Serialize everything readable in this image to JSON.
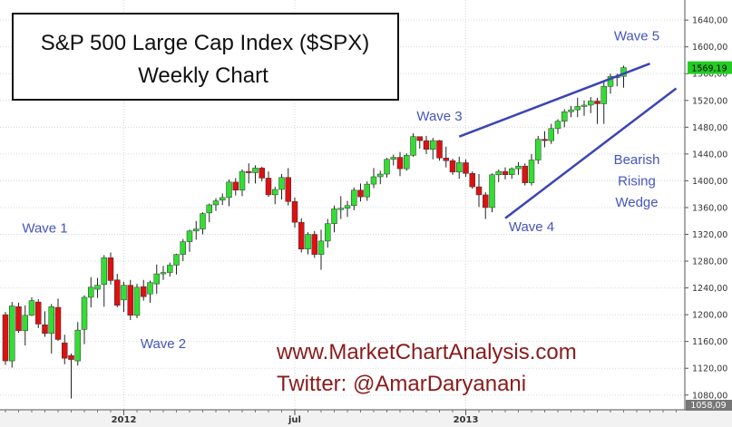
{
  "chart_data": {
    "type": "candlestick",
    "title": "S&P 500 Large Cap Index ($SPX)",
    "subtitle": "Weekly Chart",
    "last_price_label": "1569,19",
    "corner_label": "1058,09",
    "y_axis": {
      "range": [
        1058,
        1670
      ],
      "ticks": [
        {
          "value": 1080,
          "label": "1080,00"
        },
        {
          "value": 1120,
          "label": "1120,00"
        },
        {
          "value": 1160,
          "label": "1160,00"
        },
        {
          "value": 1200,
          "label": "1200,00"
        },
        {
          "value": 1240,
          "label": "1240,00"
        },
        {
          "value": 1280,
          "label": "1280,00"
        },
        {
          "value": 1320,
          "label": "1320,00"
        },
        {
          "value": 1360,
          "label": "1360,00"
        },
        {
          "value": 1400,
          "label": "1400,00"
        },
        {
          "value": 1440,
          "label": "1440,00"
        },
        {
          "value": 1480,
          "label": "1480,00"
        },
        {
          "value": 1520,
          "label": "1520,00"
        },
        {
          "value": 1560,
          "label": "1560,00"
        },
        {
          "value": 1600,
          "label": "1600,00"
        },
        {
          "value": 1640,
          "label": "1640,00"
        }
      ]
    },
    "x_axis": {
      "ticks": [
        {
          "index": 18,
          "label": "2012"
        },
        {
          "index": 44,
          "label": "jul"
        },
        {
          "index": 70,
          "label": "2013"
        }
      ]
    },
    "candles": [
      [
        1200,
        1204,
        1125,
        1131
      ],
      [
        1131,
        1219,
        1121,
        1213
      ],
      [
        1212,
        1218,
        1173,
        1176
      ],
      [
        1176,
        1214,
        1154,
        1199
      ],
      [
        1199,
        1226,
        1198,
        1221
      ],
      [
        1219,
        1223,
        1180,
        1186
      ],
      [
        1185,
        1205,
        1167,
        1172
      ],
      [
        1172,
        1216,
        1142,
        1212
      ],
      [
        1211,
        1224,
        1161,
        1163
      ],
      [
        1158,
        1170,
        1126,
        1135
      ],
      [
        1139,
        1142,
        1075,
        1133
      ],
      [
        1131,
        1189,
        1124,
        1177
      ],
      [
        1178,
        1229,
        1156,
        1226
      ],
      [
        1226,
        1256,
        1211,
        1241
      ],
      [
        1238,
        1255,
        1225,
        1244
      ],
      [
        1245,
        1289,
        1212,
        1285
      ],
      [
        1285,
        1293,
        1245,
        1251
      ],
      [
        1252,
        1261,
        1211,
        1214
      ],
      [
        1222,
        1249,
        1204,
        1244
      ],
      [
        1244,
        1252,
        1192,
        1199
      ],
      [
        1199,
        1246,
        1195,
        1241
      ],
      [
        1242,
        1252,
        1221,
        1227
      ],
      [
        1231,
        1251,
        1218,
        1248
      ],
      [
        1246,
        1275,
        1231,
        1261
      ],
      [
        1261,
        1273,
        1252,
        1263
      ],
      [
        1263,
        1278,
        1257,
        1274
      ],
      [
        1274,
        1291,
        1260,
        1290
      ],
      [
        1290,
        1313,
        1280,
        1309
      ],
      [
        1309,
        1327,
        1294,
        1325
      ],
      [
        1325,
        1340,
        1312,
        1328
      ],
      [
        1328,
        1353,
        1320,
        1351
      ],
      [
        1352,
        1366,
        1338,
        1364
      ],
      [
        1364,
        1374,
        1355,
        1370
      ],
      [
        1371,
        1381,
        1364,
        1375
      ],
      [
        1375,
        1402,
        1362,
        1398
      ],
      [
        1398,
        1404,
        1378,
        1386
      ],
      [
        1386,
        1417,
        1377,
        1414
      ],
      [
        1414,
        1426,
        1396,
        1412
      ],
      [
        1412,
        1423,
        1396,
        1419
      ],
      [
        1419,
        1421,
        1399,
        1404
      ],
      [
        1404,
        1414,
        1376,
        1379
      ],
      [
        1379,
        1391,
        1365,
        1387
      ],
      [
        1387,
        1410,
        1372,
        1405
      ],
      [
        1405,
        1419,
        1363,
        1369
      ],
      [
        1369,
        1375,
        1330,
        1338
      ],
      [
        1338,
        1344,
        1293,
        1298
      ],
      [
        1298,
        1323,
        1290,
        1320
      ],
      [
        1320,
        1325,
        1285,
        1290
      ],
      [
        1290,
        1327,
        1267,
        1310
      ],
      [
        1310,
        1343,
        1300,
        1336
      ],
      [
        1336,
        1363,
        1323,
        1358
      ],
      [
        1358,
        1377,
        1343,
        1359
      ],
      [
        1359,
        1370,
        1346,
        1363
      ],
      [
        1363,
        1390,
        1356,
        1386
      ],
      [
        1386,
        1396,
        1369,
        1376
      ],
      [
        1376,
        1399,
        1370,
        1395
      ],
      [
        1395,
        1419,
        1389,
        1406
      ],
      [
        1406,
        1415,
        1395,
        1410
      ],
      [
        1410,
        1434,
        1405,
        1432
      ],
      [
        1432,
        1439,
        1423,
        1435
      ],
      [
        1435,
        1443,
        1407,
        1418
      ],
      [
        1418,
        1441,
        1415,
        1438
      ],
      [
        1438,
        1471,
        1436,
        1466
      ],
      [
        1466,
        1465,
        1448,
        1460
      ],
      [
        1460,
        1467,
        1440,
        1447
      ],
      [
        1447,
        1464,
        1432,
        1460
      ],
      [
        1460,
        1461,
        1430,
        1434
      ],
      [
        1434,
        1451,
        1420,
        1430
      ],
      [
        1430,
        1433,
        1409,
        1413
      ],
      [
        1413,
        1436,
        1403,
        1427
      ],
      [
        1427,
        1432,
        1406,
        1411
      ],
      [
        1411,
        1414,
        1388,
        1391
      ],
      [
        1391,
        1410,
        1361,
        1379
      ],
      [
        1379,
        1383,
        1343,
        1360
      ],
      [
        1360,
        1411,
        1353,
        1409
      ],
      [
        1409,
        1417,
        1398,
        1414
      ],
      [
        1414,
        1420,
        1402,
        1409
      ],
      [
        1409,
        1420,
        1403,
        1418
      ],
      [
        1418,
        1428,
        1409,
        1422
      ],
      [
        1422,
        1426,
        1393,
        1397
      ],
      [
        1397,
        1440,
        1393,
        1431
      ],
      [
        1431,
        1467,
        1425,
        1462
      ],
      [
        1462,
        1474,
        1450,
        1460
      ],
      [
        1460,
        1485,
        1455,
        1478
      ],
      [
        1478,
        1492,
        1470,
        1489
      ],
      [
        1489,
        1507,
        1480,
        1503
      ],
      [
        1503,
        1512,
        1495,
        1506
      ],
      [
        1506,
        1524,
        1495,
        1511
      ],
      [
        1511,
        1520,
        1497,
        1513
      ],
      [
        1513,
        1525,
        1501,
        1519
      ],
      [
        1519,
        1524,
        1485,
        1515
      ],
      [
        1515,
        1548,
        1485,
        1541
      ],
      [
        1541,
        1560,
        1530,
        1556
      ],
      [
        1556,
        1560,
        1541,
        1556
      ],
      [
        1556,
        1572,
        1539,
        1569
      ]
    ],
    "trendlines": [
      {
        "from": [
          69,
          1466
        ],
        "to": [
          98,
          1575
        ]
      },
      {
        "from": [
          76,
          1344
        ],
        "to": [
          102,
          1538
        ]
      }
    ],
    "annotations": [
      {
        "text": "Wave 1",
        "index": 6,
        "value": 1323
      },
      {
        "text": "Wave 2",
        "index": 24,
        "value": 1150
      },
      {
        "text": "Wave 3",
        "index": 66,
        "value": 1490
      },
      {
        "text": "Wave 4",
        "index": 80,
        "value": 1325
      },
      {
        "text": "Wave 5",
        "index": 96,
        "value": 1610
      },
      {
        "text": "Bearish",
        "index": 96,
        "value": 1425
      },
      {
        "text": "Rising",
        "index": 96,
        "value": 1393
      },
      {
        "text": "Wedge",
        "index": 96,
        "value": 1361
      }
    ],
    "watermark": {
      "line1": "www.MarketChartAnalysis.com",
      "line2": "Twitter: @AmarDaryanani"
    },
    "colors": {
      "up": "#33dd33",
      "down": "#dd1111",
      "annotation": "#4455bb",
      "trendline": "#3b44b8",
      "watermark": "#8b1a1a",
      "price_tag": "#22cc22"
    }
  }
}
